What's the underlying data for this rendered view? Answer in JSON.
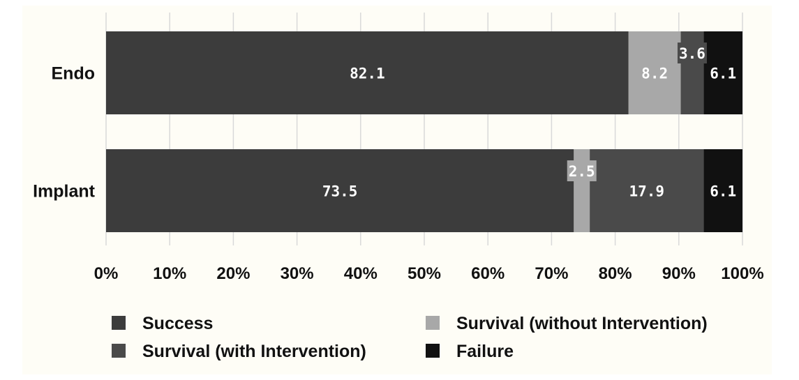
{
  "chart_data": {
    "type": "bar",
    "orientation": "horizontal",
    "stacked": true,
    "categories": [
      "Endo",
      "Implant"
    ],
    "series": [
      {
        "name": "Success",
        "color": "#3c3c3c",
        "values": [
          82.1,
          73.5
        ]
      },
      {
        "name": "Survival (without Intervention)",
        "color": "#a8a8a8",
        "values": [
          8.2,
          2.5
        ]
      },
      {
        "name": "Survival (with Intervention)",
        "color": "#4a4a4a",
        "values": [
          3.6,
          17.9
        ]
      },
      {
        "name": "Failure",
        "color": "#111111",
        "values": [
          6.1,
          6.1
        ]
      }
    ],
    "x_ticks": [
      "0%",
      "10%",
      "20%",
      "30%",
      "40%",
      "50%",
      "60%",
      "70%",
      "80%",
      "90%",
      "100%"
    ],
    "xlim": [
      0,
      100
    ],
    "grid": true,
    "legend": {
      "position": "bottom",
      "entries": [
        {
          "label": "Success",
          "color": "#3c3c3c"
        },
        {
          "label": "Survival (without Intervention)",
          "color": "#a8a8a8"
        },
        {
          "label": "Survival (with Intervention)",
          "color": "#4a4a4a"
        },
        {
          "label": "Failure",
          "color": "#111111"
        }
      ]
    }
  }
}
